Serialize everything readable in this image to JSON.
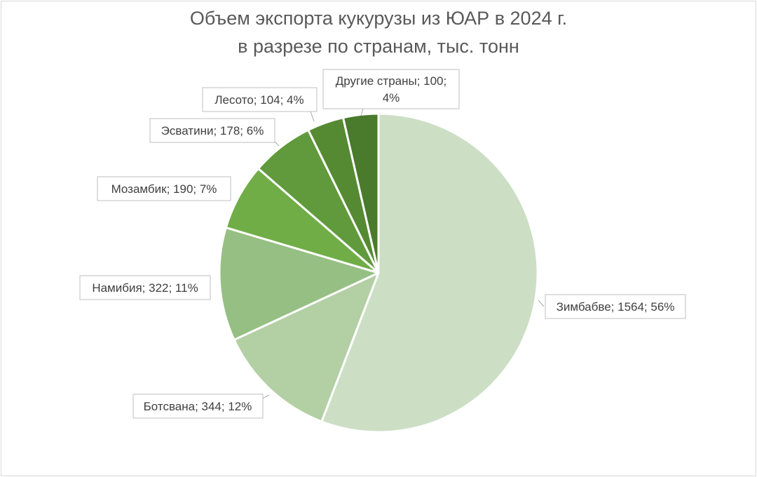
{
  "chart_data": {
    "type": "pie",
    "title": "Объем экспорта кукурузы из ЮАР в 2024 г.",
    "subtitle": "в разрезе по странам, тыс. тонн",
    "slices": [
      {
        "label": "Зимбабве; 1564; 56%",
        "value": 1564,
        "percent": 56,
        "color": "#ccdfc5"
      },
      {
        "label": "Ботсвана; 344; 12%",
        "value": 344,
        "percent": 12,
        "color": "#b3cfa4"
      },
      {
        "label": "Намибия; 322; 11%",
        "value": 322,
        "percent": 11,
        "color": "#96bf83"
      },
      {
        "label": "Мозамбик; 190; 7%",
        "value": 190,
        "percent": 7,
        "color": "#70ad47"
      },
      {
        "label": "Эсватини; 178; 6%",
        "value": 178,
        "percent": 6,
        "color": "#609a3c"
      },
      {
        "label": "Лесото; 104; 4%",
        "value": 104,
        "percent": 4,
        "color": "#558a33"
      },
      {
        "label_line1": "Другие страны; 100;",
        "label_line2": "4%",
        "value": 100,
        "percent": 4,
        "color": "#4a7a2c"
      }
    ],
    "legend": "none",
    "data_labels": "outside-with-leader-lines"
  }
}
